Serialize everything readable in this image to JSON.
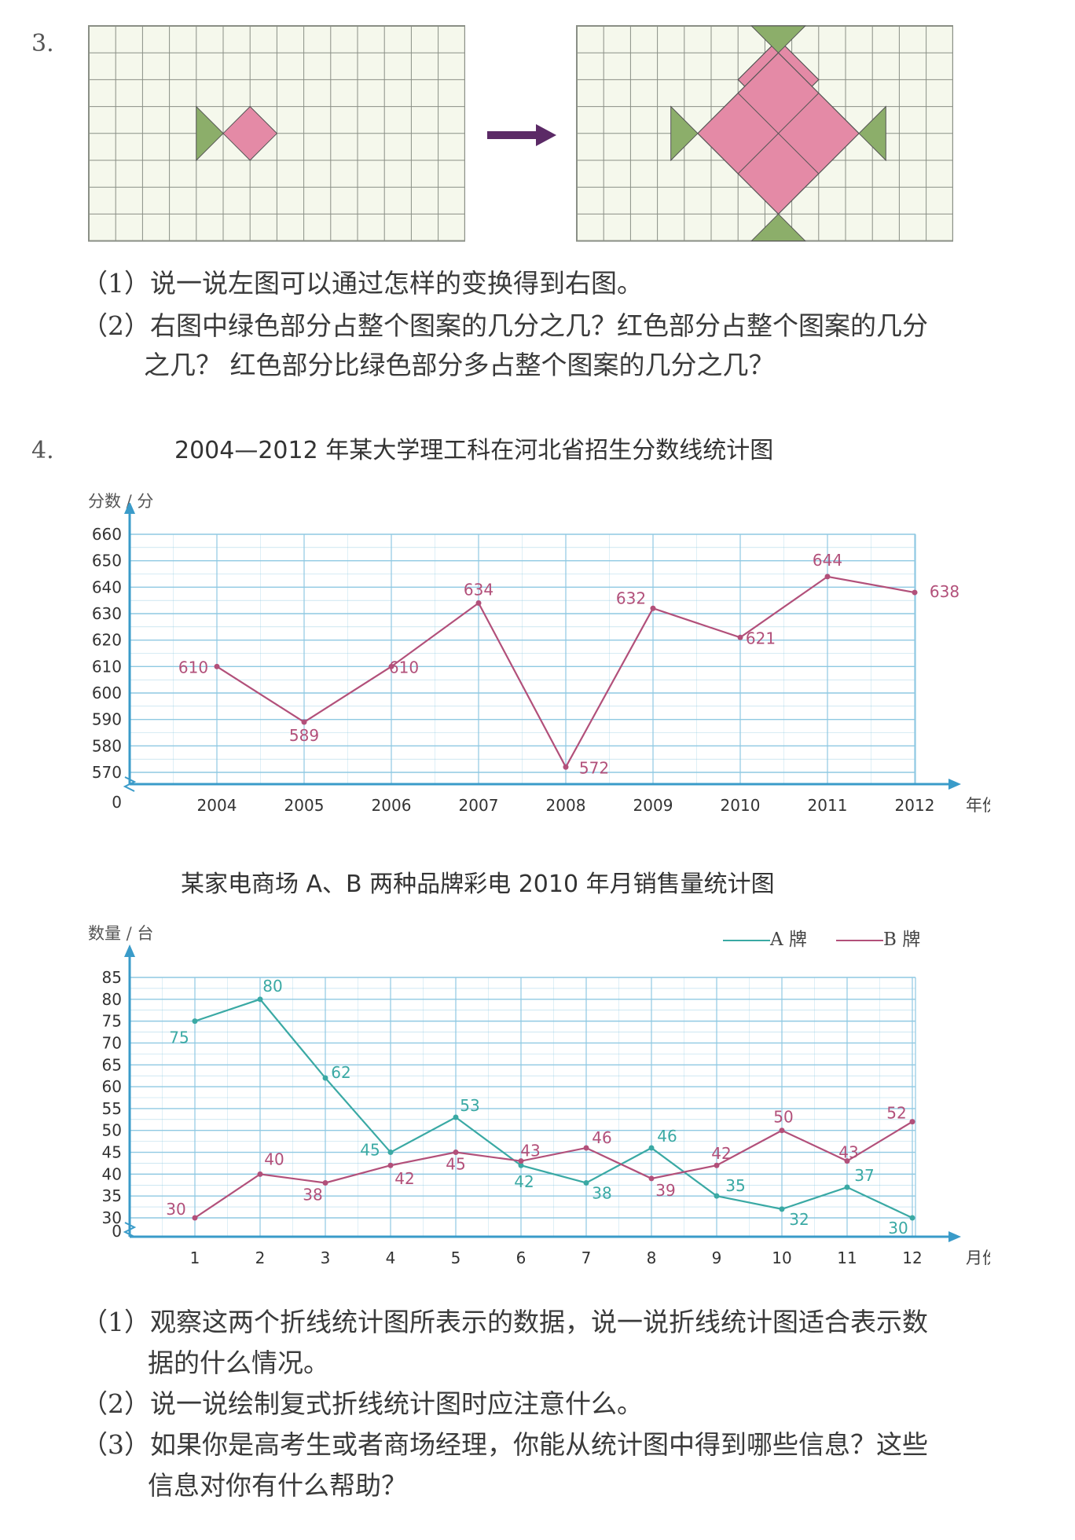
{
  "q3": {
    "number": "3.",
    "sub1": "（1）说一说左图可以通过怎样的变换得到右图。",
    "sub2_line1": "（2）右图中绿色部分占整个图案的几分之几？红色部分占整个图案的几分",
    "sub2_line2": "之几？ 红色部分比绿色部分多占整个图案的几分之几？",
    "colors": {
      "green": "#8cae6a",
      "pink": "#e48aa6",
      "grid_bg": "#f5f8ec",
      "grid_line": "#8a8f86",
      "arrow": "#5b2a66"
    }
  },
  "q4": {
    "number": "4.",
    "sub1_line1": "（1）观察这两个折线统计图所表示的数据，说一说折线统计图适合表示数",
    "sub1_line2": "据的什么情况。",
    "sub2": "（2）说一说绘制复式折线统计图时应注意什么。",
    "sub3_line1": "（3）如果你是高考生或者商场经理，你能从统计图中得到哪些信息？这些",
    "sub3_line2": "信息对你有什么帮助？"
  },
  "chart_data": [
    {
      "type": "line",
      "title": "2004—2012 年某大学理工科在河北省招生分数线统计图",
      "ylabel": "分数 / 分",
      "xlabel": "年份",
      "origin_label": "0",
      "x": [
        "2004",
        "2005",
        "2006",
        "2007",
        "2008",
        "2009",
        "2010",
        "2011",
        "2012"
      ],
      "series": [
        {
          "values": [
            610,
            589,
            610,
            634,
            572,
            632,
            621,
            644,
            638
          ],
          "color": "#b2507a"
        }
      ],
      "ylim": [
        570,
        660
      ],
      "yticks": [
        570,
        580,
        590,
        600,
        610,
        620,
        630,
        640,
        650,
        660
      ],
      "grid": true,
      "axis_color": "#3a9bc9",
      "grid_color": "#8fc9e2"
    },
    {
      "type": "line",
      "title": "某家电商场 A、B 两种品牌彩电 2010 年月销售量统计图",
      "ylabel": "数量 / 台",
      "xlabel": "月份",
      "origin_label": "0",
      "x": [
        "1",
        "2",
        "3",
        "4",
        "5",
        "6",
        "7",
        "8",
        "9",
        "10",
        "11",
        "12"
      ],
      "series": [
        {
          "name": "A 牌",
          "values": [
            75,
            80,
            62,
            45,
            53,
            42,
            38,
            46,
            35,
            32,
            37,
            30
          ],
          "color": "#3aa9a4"
        },
        {
          "name": "B 牌",
          "values": [
            30,
            40,
            38,
            42,
            45,
            43,
            46,
            39,
            42,
            50,
            43,
            52
          ],
          "color": "#b2507a"
        }
      ],
      "ylim": [
        30,
        85
      ],
      "yticks": [
        30,
        35,
        40,
        45,
        50,
        55,
        60,
        65,
        70,
        75,
        80,
        85
      ],
      "legend_position": "top-right",
      "grid": true,
      "axis_color": "#3a9bc9",
      "grid_color": "#8fc9e2"
    }
  ]
}
